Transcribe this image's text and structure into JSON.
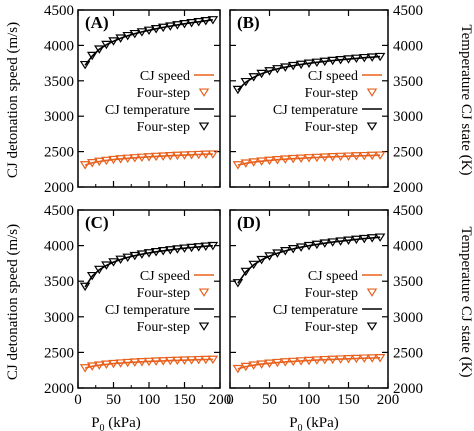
{
  "figure": {
    "ylabel_left": "CJ detonation speed (m/s)",
    "ylabel_right": "Temperature CJ state (K)",
    "xlabel_main": "P",
    "xlabel_sub": "0",
    "xlabel_unit": " (kPa)"
  },
  "colors": {
    "speed": "#e8601c",
    "temperature": "#000000",
    "axes": "#000000"
  },
  "legend": [
    "CJ speed",
    "Four-step",
    "CJ temperature",
    "Four-step"
  ],
  "chart_data": [
    {
      "panel": "(A)",
      "type": "line",
      "xlim": [
        0,
        200
      ],
      "ylim_left": [
        2000,
        4500
      ],
      "ylim_right": [
        2000,
        4500
      ],
      "x_ticks": [
        0,
        50,
        100,
        150,
        200
      ],
      "y_ticks_left": [
        2000,
        2500,
        3000,
        3500,
        4000,
        4500
      ],
      "y_ticks_right": [
        2000,
        2500,
        3000,
        3500,
        4000,
        4500
      ],
      "series": [
        {
          "name": "CJ speed",
          "axis": "left",
          "style": "line",
          "color": "#e8601c",
          "x": [
            10,
            20,
            30,
            40,
            50,
            60,
            70,
            80,
            90,
            100,
            110,
            120,
            130,
            140,
            150,
            160,
            170,
            180,
            190
          ],
          "values": [
            2310,
            2340,
            2360,
            2375,
            2387,
            2397,
            2405,
            2413,
            2420,
            2426,
            2432,
            2437,
            2442,
            2447,
            2451,
            2455,
            2459,
            2463,
            2466
          ]
        },
        {
          "name": "Four-step",
          "axis": "left",
          "style": "marker",
          "color": "#e8601c",
          "x": [
            10,
            20,
            30,
            40,
            50,
            60,
            70,
            80,
            90,
            100,
            110,
            120,
            130,
            140,
            150,
            160,
            170,
            180,
            190
          ],
          "values": [
            2315,
            2345,
            2365,
            2378,
            2390,
            2400,
            2408,
            2415,
            2422,
            2428,
            2434,
            2439,
            2444,
            2449,
            2453,
            2457,
            2461,
            2465,
            2468
          ]
        },
        {
          "name": "CJ temperature",
          "axis": "right",
          "style": "line",
          "color": "#000000",
          "x": [
            10,
            20,
            30,
            40,
            50,
            60,
            70,
            80,
            90,
            100,
            110,
            120,
            130,
            140,
            150,
            160,
            170,
            180,
            190
          ],
          "values": [
            3720,
            3850,
            3945,
            4010,
            4060,
            4100,
            4135,
            4165,
            4190,
            4213,
            4235,
            4254,
            4272,
            4289,
            4305,
            4320,
            4334,
            4348,
            4361
          ]
        },
        {
          "name": "Four-step",
          "axis": "right",
          "style": "marker",
          "color": "#000000",
          "x": [
            10,
            20,
            30,
            40,
            50,
            60,
            70,
            80,
            90,
            100,
            110,
            120,
            130,
            140,
            150,
            160,
            170,
            180,
            190
          ],
          "values": [
            3730,
            3860,
            3950,
            4015,
            4065,
            4105,
            4140,
            4168,
            4193,
            4216,
            4238,
            4257,
            4275,
            4292,
            4308,
            4323,
            4337,
            4351,
            4364
          ]
        }
      ]
    },
    {
      "panel": "(B)",
      "type": "line",
      "xlim": [
        0,
        200
      ],
      "ylim_left": [
        2000,
        4500
      ],
      "ylim_right": [
        2000,
        4500
      ],
      "x_ticks": [
        0,
        50,
        100,
        150,
        200
      ],
      "y_ticks_left": [
        2000,
        2500,
        3000,
        3500,
        4000,
        4500
      ],
      "y_ticks_right": [
        2000,
        2500,
        3000,
        3500,
        4000,
        4500
      ],
      "series": [
        {
          "name": "CJ speed",
          "axis": "left",
          "style": "line",
          "color": "#e8601c",
          "x": [
            10,
            20,
            30,
            40,
            50,
            60,
            70,
            80,
            90,
            100,
            110,
            120,
            130,
            140,
            150,
            160,
            170,
            180,
            190
          ],
          "values": [
            2310,
            2335,
            2352,
            2365,
            2376,
            2385,
            2393,
            2400,
            2406,
            2412,
            2417,
            2422,
            2427,
            2431,
            2435,
            2439,
            2442,
            2446,
            2449
          ]
        },
        {
          "name": "Four-step",
          "axis": "left",
          "style": "marker",
          "color": "#e8601c",
          "x": [
            10,
            20,
            30,
            40,
            50,
            60,
            70,
            80,
            90,
            100,
            110,
            120,
            130,
            140,
            150,
            160,
            170,
            180,
            190
          ],
          "values": [
            2315,
            2340,
            2356,
            2368,
            2379,
            2388,
            2396,
            2403,
            2409,
            2415,
            2420,
            2425,
            2430,
            2434,
            2438,
            2442,
            2445,
            2449,
            2452
          ]
        },
        {
          "name": "CJ temperature",
          "axis": "right",
          "style": "line",
          "color": "#000000",
          "x": [
            10,
            20,
            30,
            40,
            50,
            60,
            70,
            80,
            90,
            100,
            110,
            120,
            130,
            140,
            150,
            160,
            170,
            180,
            190
          ],
          "values": [
            3370,
            3480,
            3550,
            3600,
            3638,
            3668,
            3692,
            3713,
            3731,
            3747,
            3761,
            3774,
            3786,
            3797,
            3807,
            3817,
            3826,
            3834,
            3842
          ]
        },
        {
          "name": "Four-step",
          "axis": "right",
          "style": "marker",
          "color": "#000000",
          "x": [
            10,
            20,
            30,
            40,
            50,
            60,
            70,
            80,
            90,
            100,
            110,
            120,
            130,
            140,
            150,
            160,
            170,
            180,
            190
          ],
          "values": [
            3380,
            3490,
            3558,
            3606,
            3643,
            3672,
            3696,
            3717,
            3735,
            3750,
            3764,
            3777,
            3789,
            3800,
            3810,
            3820,
            3829,
            3837,
            3845
          ]
        }
      ]
    },
    {
      "panel": "(C)",
      "type": "line",
      "xlim": [
        0,
        200
      ],
      "ylim_left": [
        2000,
        4500
      ],
      "ylim_right": [
        2000,
        4500
      ],
      "x_ticks": [
        0,
        50,
        100,
        150,
        200
      ],
      "y_ticks_left": [
        2000,
        2500,
        3000,
        3500,
        4000,
        4500
      ],
      "y_ticks_right": [
        2000,
        2500,
        3000,
        3500,
        4000,
        4500
      ],
      "series": [
        {
          "name": "CJ speed",
          "axis": "left",
          "style": "line",
          "color": "#e8601c",
          "x": [
            10,
            20,
            30,
            40,
            50,
            60,
            70,
            80,
            90,
            100,
            110,
            120,
            130,
            140,
            150,
            160,
            170,
            180,
            190
          ],
          "values": [
            2280,
            2305,
            2320,
            2332,
            2342,
            2350,
            2357,
            2363,
            2368,
            2373,
            2377,
            2381,
            2385,
            2388,
            2391,
            2394,
            2397,
            2400,
            2402
          ]
        },
        {
          "name": "Four-step",
          "axis": "left",
          "style": "marker",
          "color": "#e8601c",
          "x": [
            10,
            20,
            30,
            40,
            50,
            60,
            70,
            80,
            90,
            100,
            110,
            120,
            130,
            140,
            150,
            160,
            170,
            180,
            190
          ],
          "values": [
            2285,
            2310,
            2324,
            2336,
            2345,
            2353,
            2360,
            2366,
            2371,
            2376,
            2380,
            2384,
            2388,
            2391,
            2394,
            2397,
            2400,
            2403,
            2405
          ]
        },
        {
          "name": "CJ temperature",
          "axis": "right",
          "style": "line",
          "color": "#000000",
          "x": [
            10,
            20,
            30,
            40,
            50,
            60,
            70,
            80,
            90,
            100,
            110,
            120,
            130,
            140,
            150,
            160,
            170,
            180,
            190
          ],
          "values": [
            3420,
            3570,
            3660,
            3722,
            3768,
            3805,
            3834,
            3858,
            3879,
            3897,
            3913,
            3927,
            3940,
            3952,
            3963,
            3973,
            3982,
            3991,
            3999
          ]
        },
        {
          "name": "Four-step",
          "axis": "right",
          "style": "marker",
          "color": "#000000",
          "x": [
            10,
            20,
            30,
            40,
            50,
            60,
            70,
            80,
            90,
            100,
            110,
            120,
            130,
            140,
            150,
            160,
            170,
            180,
            190
          ],
          "values": [
            3430,
            3580,
            3668,
            3728,
            3773,
            3810,
            3838,
            3862,
            3883,
            3900,
            3916,
            3930,
            3943,
            3955,
            3966,
            3976,
            3985,
            3994,
            4002
          ]
        }
      ]
    },
    {
      "panel": "(D)",
      "type": "line",
      "xlim": [
        0,
        200
      ],
      "ylim_left": [
        2000,
        4500
      ],
      "ylim_right": [
        2000,
        4500
      ],
      "x_ticks": [
        0,
        50,
        100,
        150,
        200
      ],
      "y_ticks_left": [
        2000,
        2500,
        3000,
        3500,
        4000,
        4500
      ],
      "y_ticks_right": [
        2000,
        2500,
        3000,
        3500,
        4000,
        4500
      ],
      "series": [
        {
          "name": "CJ speed",
          "axis": "left",
          "style": "line",
          "color": "#e8601c",
          "x": [
            10,
            20,
            30,
            40,
            50,
            60,
            70,
            80,
            90,
            100,
            110,
            120,
            130,
            140,
            150,
            160,
            170,
            180,
            190
          ],
          "values": [
            2270,
            2300,
            2320,
            2335,
            2347,
            2357,
            2366,
            2373,
            2380,
            2386,
            2392,
            2397,
            2402,
            2406,
            2410,
            2414,
            2418,
            2421,
            2424
          ]
        },
        {
          "name": "Four-step",
          "axis": "left",
          "style": "marker",
          "color": "#e8601c",
          "x": [
            10,
            20,
            30,
            40,
            50,
            60,
            70,
            80,
            90,
            100,
            110,
            120,
            130,
            140,
            150,
            160,
            170,
            180,
            190
          ],
          "values": [
            2275,
            2305,
            2324,
            2338,
            2350,
            2360,
            2369,
            2376,
            2383,
            2389,
            2395,
            2400,
            2405,
            2409,
            2413,
            2417,
            2421,
            2424,
            2427
          ]
        },
        {
          "name": "CJ temperature",
          "axis": "right",
          "style": "line",
          "color": "#000000",
          "x": [
            10,
            20,
            30,
            40,
            50,
            60,
            70,
            80,
            90,
            100,
            110,
            120,
            130,
            140,
            150,
            160,
            170,
            180,
            190
          ],
          "values": [
            3470,
            3630,
            3730,
            3800,
            3852,
            3893,
            3926,
            3954,
            3978,
            3999,
            4017,
            4034,
            4049,
            4062,
            4075,
            4087,
            4098,
            4108,
            4118
          ]
        },
        {
          "name": "Four-step",
          "axis": "right",
          "style": "marker",
          "color": "#000000",
          "x": [
            10,
            20,
            30,
            40,
            50,
            60,
            70,
            80,
            90,
            100,
            110,
            120,
            130,
            140,
            150,
            160,
            170,
            180,
            190
          ],
          "values": [
            3480,
            3640,
            3738,
            3806,
            3857,
            3897,
            3930,
            3958,
            3981,
            4002,
            4020,
            4037,
            4052,
            4065,
            4078,
            4090,
            4101,
            4111,
            4121
          ]
        }
      ]
    }
  ]
}
